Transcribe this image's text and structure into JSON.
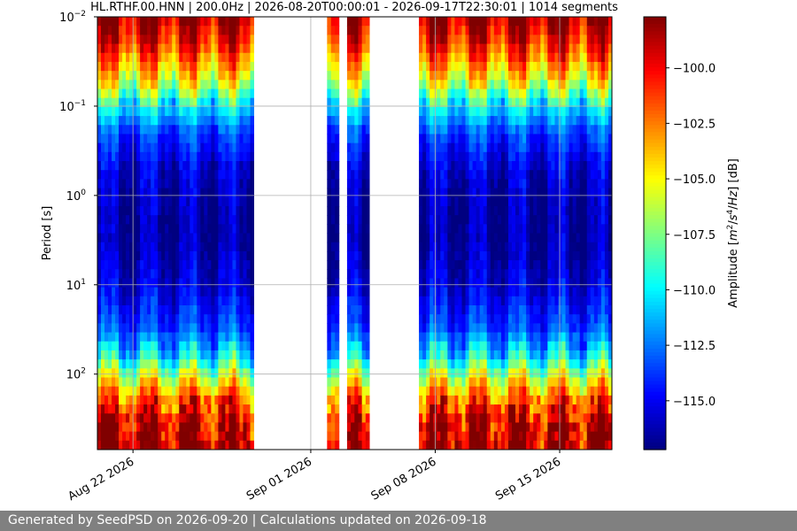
{
  "chart_data": {
    "type": "heatmap",
    "title": "HL.RTHF.00.HNN | 200.0Hz | 2026-08-20T00:00:01 - 2026-09-17T22:30:01 | 1014 segments",
    "ylabel": "Period [s]",
    "yscale": "log",
    "yaxis_inverted": true,
    "ylim": [
      0.01,
      700
    ],
    "y_ticks": [
      0.01,
      0.1,
      1,
      10,
      100
    ],
    "y_tick_labels": [
      {
        "base": "10",
        "exp": "−2"
      },
      {
        "base": "10",
        "exp": "−1"
      },
      {
        "base": "10",
        "exp": "0"
      },
      {
        "base": "10",
        "exp": "1"
      },
      {
        "base": "10",
        "exp": "2"
      }
    ],
    "x_ticks": [
      "2026-08-22",
      "2026-09-01",
      "2026-09-08",
      "2026-09-15"
    ],
    "x_tick_labels": [
      "Aug 22 2026",
      "Sep 01 2026",
      "Sep 08 2026",
      "Sep 15 2026"
    ],
    "xlim": [
      "2026-08-20T00:00:01",
      "2026-09-17T22:30:01"
    ],
    "data_segments": [
      {
        "start": "2026-08-20T00:00",
        "end": "2026-08-28T19:00"
      },
      {
        "start": "2026-09-01T22:00",
        "end": "2026-09-02T14:00"
      },
      {
        "start": "2026-09-03T01:00",
        "end": "2026-09-04T07:00"
      },
      {
        "start": "2026-09-07T02:00",
        "end": "2026-09-17T22:30"
      }
    ],
    "grid": true,
    "colorbar": {
      "label_parts": [
        "Amplitude [",
        "m",
        "2",
        "/",
        "s",
        "4",
        "/",
        "Hz",
        "] [dB]"
      ],
      "ticks": [
        -100.0,
        -102.5,
        -105.0,
        -107.5,
        -110.0,
        -112.5,
        -115.0
      ],
      "tick_labels": [
        "−100.0",
        "−102.5",
        "−105.0",
        "−107.5",
        "−110.0",
        "−112.5",
        "−115.0"
      ],
      "range": [
        -117.2,
        -97.7
      ],
      "colormap": "jet"
    },
    "amplitude_profile_by_period": [
      {
        "period": 0.01,
        "db": -98.3
      },
      {
        "period": 0.02,
        "db": -100.5
      },
      {
        "period": 0.05,
        "db": -105.0
      },
      {
        "period": 0.1,
        "db": -110.0
      },
      {
        "period": 0.2,
        "db": -113.5
      },
      {
        "period": 0.5,
        "db": -115.5
      },
      {
        "period": 1,
        "db": -116.2
      },
      {
        "period": 3,
        "db": -116.5
      },
      {
        "period": 10,
        "db": -115.5
      },
      {
        "period": 30,
        "db": -113.5
      },
      {
        "period": 60,
        "db": -110.5
      },
      {
        "period": 100,
        "db": -106.5
      },
      {
        "period": 200,
        "db": -101.5
      },
      {
        "period": 400,
        "db": -99.0
      },
      {
        "period": 700,
        "db": -98.5
      }
    ]
  },
  "footer": {
    "text": "Generated by SeedPSD on 2026-09-20 | Calculations updated on 2026-09-18",
    "background": "#808080"
  }
}
